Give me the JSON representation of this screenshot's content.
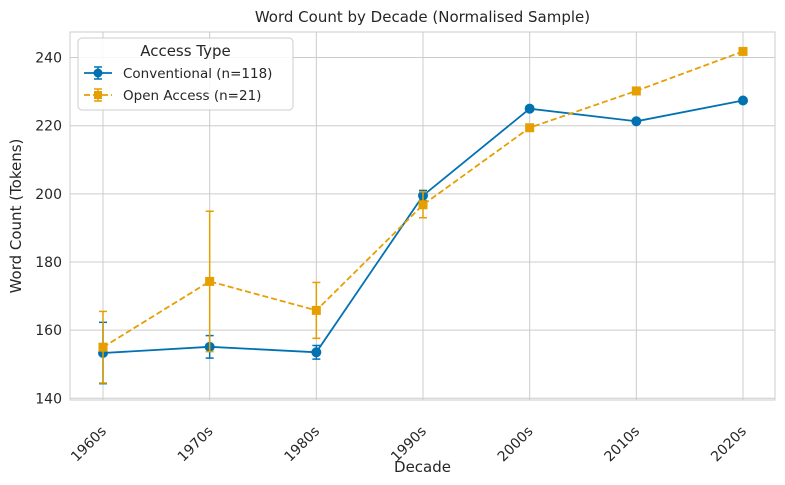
{
  "chart_data": {
    "type": "line",
    "title": "Word Count by Decade (Normalised Sample)",
    "xlabel": "Decade",
    "ylabel": "Word Count (Tokens)",
    "categories": [
      "1960s",
      "1970s",
      "1980s",
      "1990s",
      "2000s",
      "2010s",
      "2020s"
    ],
    "ylim": [
      139.5,
      247.5
    ],
    "yticks": [
      140,
      160,
      180,
      200,
      220,
      240
    ],
    "grid": true,
    "legend": {
      "title": "Access Type",
      "placement": "top-left"
    },
    "series": [
      {
        "name": "Conventional (n=118)",
        "color": "#0072b2",
        "marker": "circle",
        "linestyle": "solid",
        "values": [
          153.3,
          155.1,
          153.5,
          199.5,
          225.0,
          221.3,
          227.4
        ],
        "error": [
          9.0,
          3.3,
          2.0,
          1.5,
          0.5,
          0.5,
          0.5
        ]
      },
      {
        "name": "Open Access (n=21)",
        "color": "#e69f00",
        "marker": "square",
        "linestyle": "dashed",
        "values": [
          155.0,
          174.3,
          165.8,
          196.8,
          219.4,
          230.2,
          241.8
        ],
        "error": [
          10.5,
          20.6,
          8.2,
          3.8,
          0.5,
          0.5,
          0.5
        ]
      }
    ]
  }
}
